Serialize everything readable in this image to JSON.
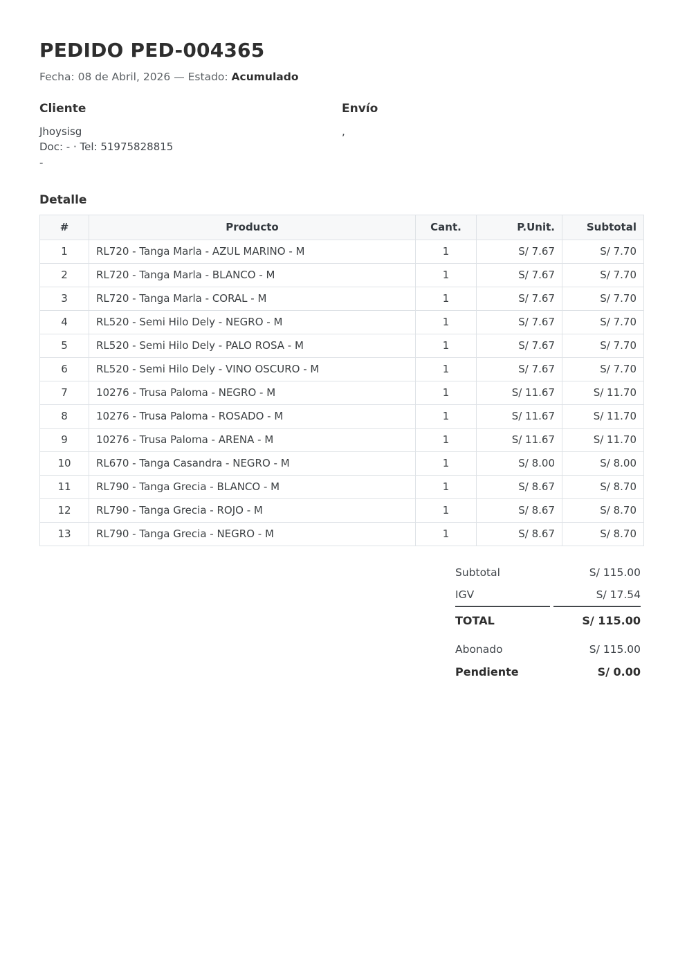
{
  "page": {
    "title": "PEDIDO PED-004365",
    "subtitle_prefix": "Fecha: 08 de Abril, 2026 — Estado: ",
    "status": "Acumulado"
  },
  "cliente": {
    "heading": "Cliente",
    "name": "Jhoysisg",
    "doc_line": "Doc: - · Tel: 51975828815",
    "extra_line": "-"
  },
  "envio": {
    "heading": "Envío",
    "address_line": ","
  },
  "detalle": {
    "heading": "Detalle",
    "columns": [
      "#",
      "Producto",
      "Cant.",
      "P.Unit.",
      "Subtotal"
    ],
    "rows": [
      {
        "num": "1",
        "producto": "RL720 - Tanga Marla - AZUL MARINO - M",
        "cant": "1",
        "punit": "S/ 7.67",
        "subtotal": "S/ 7.70"
      },
      {
        "num": "2",
        "producto": "RL720 - Tanga Marla - BLANCO - M",
        "cant": "1",
        "punit": "S/ 7.67",
        "subtotal": "S/ 7.70"
      },
      {
        "num": "3",
        "producto": "RL720 - Tanga Marla - CORAL - M",
        "cant": "1",
        "punit": "S/ 7.67",
        "subtotal": "S/ 7.70"
      },
      {
        "num": "4",
        "producto": "RL520 - Semi Hilo Dely - NEGRO - M",
        "cant": "1",
        "punit": "S/ 7.67",
        "subtotal": "S/ 7.70"
      },
      {
        "num": "5",
        "producto": "RL520 - Semi Hilo Dely - PALO ROSA - M",
        "cant": "1",
        "punit": "S/ 7.67",
        "subtotal": "S/ 7.70"
      },
      {
        "num": "6",
        "producto": "RL520 - Semi Hilo Dely - VINO OSCURO - M",
        "cant": "1",
        "punit": "S/ 7.67",
        "subtotal": "S/ 7.70"
      },
      {
        "num": "7",
        "producto": "10276 - Trusa Paloma - NEGRO - M",
        "cant": "1",
        "punit": "S/ 11.67",
        "subtotal": "S/ 11.70"
      },
      {
        "num": "8",
        "producto": "10276 - Trusa Paloma - ROSADO - M",
        "cant": "1",
        "punit": "S/ 11.67",
        "subtotal": "S/ 11.70"
      },
      {
        "num": "9",
        "producto": "10276 - Trusa Paloma - ARENA - M",
        "cant": "1",
        "punit": "S/ 11.67",
        "subtotal": "S/ 11.70"
      },
      {
        "num": "10",
        "producto": "RL670 - Tanga Casandra - NEGRO - M",
        "cant": "1",
        "punit": "S/ 8.00",
        "subtotal": "S/ 8.00"
      },
      {
        "num": "11",
        "producto": "RL790 - Tanga Grecia - BLANCO - M",
        "cant": "1",
        "punit": "S/ 8.67",
        "subtotal": "S/ 8.70"
      },
      {
        "num": "12",
        "producto": "RL790 - Tanga Grecia - ROJO - M",
        "cant": "1",
        "punit": "S/ 8.67",
        "subtotal": "S/ 8.70"
      },
      {
        "num": "13",
        "producto": "RL790 - Tanga Grecia - NEGRO - M",
        "cant": "1",
        "punit": "S/ 8.67",
        "subtotal": "S/ 8.70"
      }
    ]
  },
  "totals": {
    "rows": [
      {
        "label": "Subtotal",
        "value": "S/ 115.00",
        "bold": false,
        "divider_above": false,
        "gap_above": false
      },
      {
        "label": "IGV",
        "value": "S/ 17.54",
        "bold": false,
        "divider_above": false,
        "gap_above": false
      },
      {
        "label": "TOTAL",
        "value": "S/ 115.00",
        "bold": true,
        "divider_above": true,
        "gap_above": false
      },
      {
        "label": "Abonado",
        "value": "S/ 115.00",
        "bold": false,
        "divider_above": false,
        "gap_above": true
      },
      {
        "label": "Pendiente",
        "value": "S/ 0.00",
        "bold": true,
        "divider_above": false,
        "gap_above": false
      }
    ]
  },
  "colors": {
    "table_header_bg": "#f7f8f9",
    "table_border": "#dee2e6",
    "text_primary": "#2e2e2e",
    "text_body": "#3f4449",
    "text_muted": "#5b6064",
    "divider": "#43474b"
  }
}
